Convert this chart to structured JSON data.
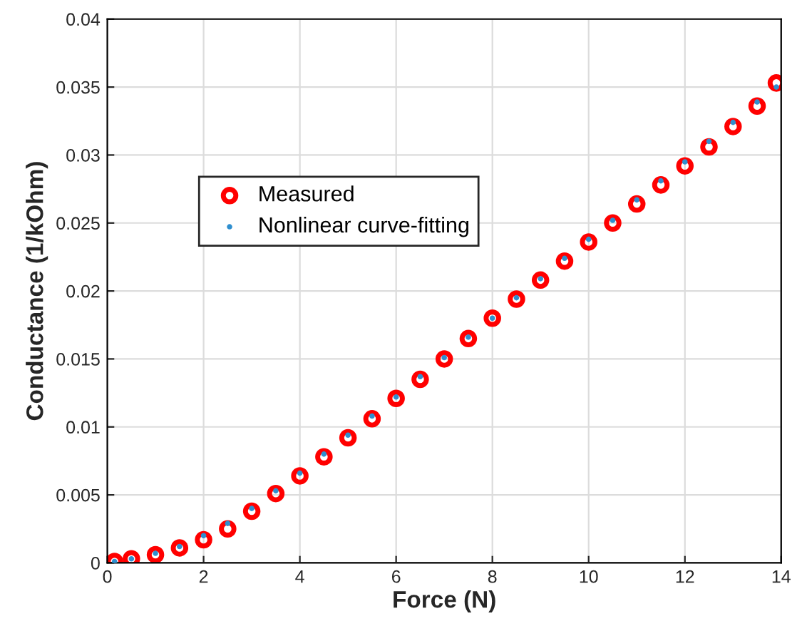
{
  "chart_data": {
    "type": "scatter",
    "xlabel": "Force (N)",
    "ylabel": "Conductance (1/kOhm)",
    "xlim": [
      0,
      14
    ],
    "ylim": [
      0,
      0.04
    ],
    "xticks": [
      0,
      2,
      4,
      6,
      8,
      10,
      12,
      14
    ],
    "yticks": [
      0,
      0.005,
      0.01,
      0.015,
      0.02,
      0.025,
      0.03,
      0.035,
      0.04
    ],
    "grid": true,
    "legend": "top left",
    "series": [
      {
        "name": "Measured",
        "color": "#ff0000",
        "marker": "circle",
        "x": [
          0.15,
          0.5,
          1,
          1.5,
          2,
          2.5,
          3,
          3.5,
          4,
          4.5,
          5,
          5.5,
          6,
          6.5,
          7,
          7.5,
          8,
          8.5,
          9,
          9.5,
          10,
          10.5,
          11,
          11.5,
          12,
          12.5,
          13,
          13.5,
          13.9
        ],
        "values": [
          0.0001,
          0.0003,
          0.0006,
          0.0011,
          0.0017,
          0.0025,
          0.0038,
          0.0051,
          0.0064,
          0.0078,
          0.0092,
          0.0106,
          0.0121,
          0.0135,
          0.015,
          0.0165,
          0.018,
          0.0194,
          0.0208,
          0.0222,
          0.0236,
          0.025,
          0.0264,
          0.0278,
          0.0292,
          0.0306,
          0.0321,
          0.0336,
          0.0353
        ]
      },
      {
        "name": "Nonlinear curve-fitting",
        "color": "#2f8fcf",
        "marker": "point",
        "x": [
          0.15,
          0.5,
          1,
          1.5,
          2,
          2.5,
          3,
          3.5,
          4,
          4.5,
          5,
          5.5,
          6,
          6.5,
          7,
          7.5,
          8,
          8.5,
          9,
          9.5,
          10,
          10.5,
          11,
          11.5,
          12,
          12.5,
          13,
          13.5,
          13.9
        ],
        "values": [
          0.0001,
          0.0003,
          0.0007,
          0.0012,
          0.002,
          0.0029,
          0.004,
          0.0053,
          0.0066,
          0.008,
          0.0094,
          0.0108,
          0.0122,
          0.0137,
          0.0151,
          0.0166,
          0.018,
          0.0195,
          0.0209,
          0.0224,
          0.0238,
          0.0252,
          0.0267,
          0.0281,
          0.0295,
          0.031,
          0.0324,
          0.0339,
          0.035
        ]
      }
    ]
  }
}
